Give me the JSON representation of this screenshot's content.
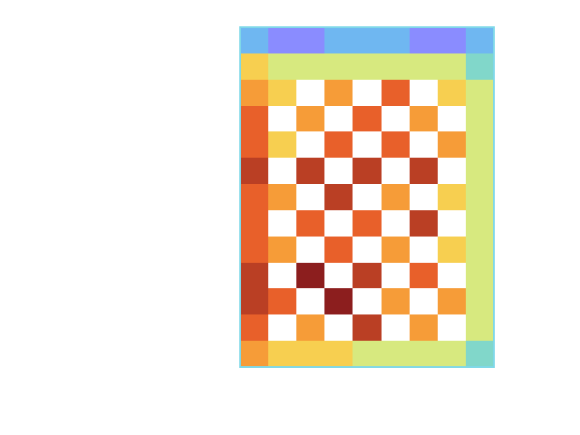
{
  "chart_data": {
    "type": "heatmap",
    "cells": [
      [
        3,
        2,
        2,
        3,
        3,
        3,
        2,
        2,
        3
      ],
      [
        6,
        5,
        5,
        5,
        5,
        5,
        5,
        5,
        4
      ],
      [
        7,
        6,
        null,
        7,
        null,
        8,
        null,
        6,
        5
      ],
      [
        8,
        null,
        7,
        null,
        8,
        null,
        7,
        null,
        5
      ],
      [
        8,
        6,
        null,
        8,
        null,
        8,
        null,
        7,
        5
      ],
      [
        9,
        null,
        9,
        null,
        9,
        null,
        9,
        null,
        5
      ],
      [
        8,
        7,
        null,
        9,
        null,
        7,
        null,
        6,
        5
      ],
      [
        8,
        null,
        8,
        null,
        8,
        null,
        9,
        null,
        5
      ],
      [
        8,
        7,
        null,
        8,
        null,
        7,
        null,
        6,
        5
      ],
      [
        9,
        null,
        10,
        null,
        9,
        null,
        8,
        null,
        5
      ],
      [
        9,
        8,
        null,
        10,
        null,
        7,
        null,
        7,
        5
      ],
      [
        8,
        null,
        7,
        null,
        9,
        null,
        7,
        null,
        5
      ],
      [
        7,
        6,
        6,
        6,
        5,
        5,
        5,
        5,
        4
      ]
    ],
    "grid": false,
    "tick_labels": false
  }
}
